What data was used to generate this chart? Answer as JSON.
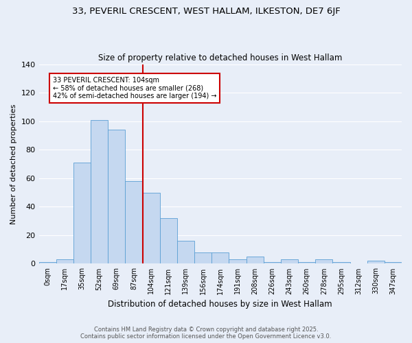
{
  "title1": "33, PEVERIL CRESCENT, WEST HALLAM, ILKESTON, DE7 6JF",
  "title2": "Size of property relative to detached houses in West Hallam",
  "xlabel": "Distribution of detached houses by size in West Hallam",
  "ylabel": "Number of detached properties",
  "footer1": "Contains HM Land Registry data © Crown copyright and database right 2025.",
  "footer2": "Contains public sector information licensed under the Open Government Licence v3.0.",
  "annotation_line1": "33 PEVERIL CRESCENT: 104sqm",
  "annotation_line2": "← 58% of detached houses are smaller (268)",
  "annotation_line3": "42% of semi-detached houses are larger (194) →",
  "bar_labels": [
    "0sqm",
    "17sqm",
    "35sqm",
    "52sqm",
    "69sqm",
    "87sqm",
    "104sqm",
    "121sqm",
    "139sqm",
    "156sqm",
    "174sqm",
    "191sqm",
    "208sqm",
    "226sqm",
    "243sqm",
    "260sqm",
    "278sqm",
    "295sqm",
    "312sqm",
    "330sqm",
    "347sqm"
  ],
  "bar_values": [
    1,
    3,
    71,
    101,
    94,
    58,
    50,
    32,
    16,
    8,
    8,
    3,
    5,
    1,
    3,
    1,
    3,
    1,
    0,
    2,
    1
  ],
  "bar_color": "#c5d8f0",
  "bar_edge_color": "#5a9fd4",
  "vline_color": "#cc0000",
  "vline_bin": 6,
  "background_color": "#e8eef8",
  "grid_color": "#ffffff",
  "ylim": [
    0,
    140
  ],
  "yticks": [
    0,
    20,
    40,
    60,
    80,
    100,
    120,
    140
  ]
}
